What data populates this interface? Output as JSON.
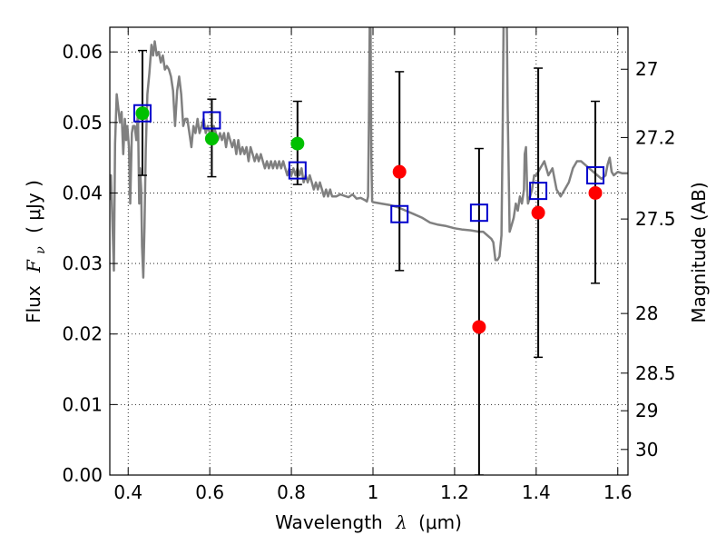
{
  "chart_data": {
    "type": "scatter",
    "xlabel_text": "Wavelength",
    "xlabel_symbol": "λ",
    "xlabel_unit": "(μm)",
    "ylabel_text": "Flux",
    "ylabel_symbol": "F",
    "ylabel_subscript": "ν",
    "ylabel_unit": "( μJy )",
    "y2label": "Magnitude (AB)",
    "xlim": [
      0.355,
      1.625
    ],
    "ylim": [
      0.0,
      0.0635
    ],
    "x_ticks": [
      0.4,
      0.6,
      0.8,
      1.0,
      1.2,
      1.4,
      1.6
    ],
    "x_tick_labels": [
      "0.4",
      "0.6",
      "0.8",
      "1",
      "1.2",
      "1.4",
      "1.6"
    ],
    "y_ticks": [
      0.0,
      0.01,
      0.02,
      0.03,
      0.04,
      0.05,
      0.06
    ],
    "y_tick_labels": [
      "0.00",
      "0.01",
      "0.02",
      "0.03",
      "0.04",
      "0.05",
      "0.06"
    ],
    "mag_ticks": [
      27,
      27.2,
      27.5,
      28,
      28.5,
      29,
      30
    ],
    "mag_tick_labels": [
      "27",
      "27.2",
      "27.5",
      "28",
      "28.5",
      "29",
      "30"
    ],
    "grid": true,
    "colors": {
      "model": "#808080",
      "green_points": "#00c000",
      "red_points": "#ff0000",
      "boxes": "#0000cc",
      "errorbars": "#000000"
    },
    "series": [
      {
        "values_role": "model spectrum",
        "points": [
          [
            0.355,
            0.039
          ],
          [
            0.358,
            0.0425
          ],
          [
            0.362,
            0.035
          ],
          [
            0.365,
            0.029
          ],
          [
            0.368,
            0.047
          ],
          [
            0.372,
            0.054
          ],
          [
            0.376,
            0.052
          ],
          [
            0.38,
            0.05
          ],
          [
            0.384,
            0.0515
          ],
          [
            0.388,
            0.0455
          ],
          [
            0.392,
            0.0505
          ],
          [
            0.395,
            0.0475
          ],
          [
            0.398,
            0.0495
          ],
          [
            0.402,
            0.0465
          ],
          [
            0.405,
            0.0385
          ],
          [
            0.409,
            0.0485
          ],
          [
            0.412,
            0.0495
          ],
          [
            0.416,
            0.0495
          ],
          [
            0.42,
            0.0475
          ],
          [
            0.424,
            0.0515
          ],
          [
            0.427,
            0.0385
          ],
          [
            0.429,
            0.0435
          ],
          [
            0.432,
            0.0405
          ],
          [
            0.434,
            0.0325
          ],
          [
            0.437,
            0.028
          ],
          [
            0.44,
            0.035
          ],
          [
            0.443,
            0.046
          ],
          [
            0.447,
            0.054
          ],
          [
            0.452,
            0.057
          ],
          [
            0.457,
            0.061
          ],
          [
            0.461,
            0.0595
          ],
          [
            0.465,
            0.0615
          ],
          [
            0.47,
            0.0595
          ],
          [
            0.475,
            0.06
          ],
          [
            0.48,
            0.0585
          ],
          [
            0.485,
            0.0595
          ],
          [
            0.49,
            0.0575
          ],
          [
            0.495,
            0.058
          ],
          [
            0.5,
            0.0575
          ],
          [
            0.505,
            0.0565
          ],
          [
            0.51,
            0.0545
          ],
          [
            0.515,
            0.0495
          ],
          [
            0.52,
            0.0545
          ],
          [
            0.525,
            0.0565
          ],
          [
            0.53,
            0.054
          ],
          [
            0.535,
            0.0495
          ],
          [
            0.54,
            0.0505
          ],
          [
            0.545,
            0.0505
          ],
          [
            0.55,
            0.0485
          ],
          [
            0.555,
            0.0465
          ],
          [
            0.56,
            0.0495
          ],
          [
            0.565,
            0.0485
          ],
          [
            0.57,
            0.0505
          ],
          [
            0.575,
            0.0485
          ],
          [
            0.58,
            0.0495
          ],
          [
            0.585,
            0.0505
          ],
          [
            0.59,
            0.0485
          ],
          [
            0.595,
            0.0495
          ],
          [
            0.6,
            0.0485
          ],
          [
            0.605,
            0.0475
          ],
          [
            0.61,
            0.0495
          ],
          [
            0.615,
            0.0485
          ],
          [
            0.62,
            0.0475
          ],
          [
            0.625,
            0.0485
          ],
          [
            0.63,
            0.0475
          ],
          [
            0.635,
            0.0485
          ],
          [
            0.64,
            0.0465
          ],
          [
            0.645,
            0.0485
          ],
          [
            0.65,
            0.0475
          ],
          [
            0.655,
            0.0465
          ],
          [
            0.66,
            0.0475
          ],
          [
            0.665,
            0.0455
          ],
          [
            0.67,
            0.0475
          ],
          [
            0.675,
            0.0455
          ],
          [
            0.68,
            0.0465
          ],
          [
            0.685,
            0.0455
          ],
          [
            0.69,
            0.0465
          ],
          [
            0.695,
            0.0445
          ],
          [
            0.7,
            0.0465
          ],
          [
            0.705,
            0.0455
          ],
          [
            0.71,
            0.0445
          ],
          [
            0.715,
            0.0455
          ],
          [
            0.72,
            0.0445
          ],
          [
            0.725,
            0.0455
          ],
          [
            0.73,
            0.0445
          ],
          [
            0.735,
            0.0435
          ],
          [
            0.74,
            0.0445
          ],
          [
            0.745,
            0.0435
          ],
          [
            0.75,
            0.0445
          ],
          [
            0.755,
            0.0435
          ],
          [
            0.76,
            0.0445
          ],
          [
            0.765,
            0.0435
          ],
          [
            0.77,
            0.0445
          ],
          [
            0.775,
            0.0435
          ],
          [
            0.78,
            0.0445
          ],
          [
            0.785,
            0.0435
          ],
          [
            0.79,
            0.0425
          ],
          [
            0.795,
            0.0435
          ],
          [
            0.8,
            0.0425
          ],
          [
            0.805,
            0.0435
          ],
          [
            0.81,
            0.0425
          ],
          [
            0.815,
            0.0435
          ],
          [
            0.82,
            0.0425
          ],
          [
            0.825,
            0.0435
          ],
          [
            0.83,
            0.0415
          ],
          [
            0.835,
            0.0425
          ],
          [
            0.84,
            0.0415
          ],
          [
            0.845,
            0.0425
          ],
          [
            0.85,
            0.0415
          ],
          [
            0.855,
            0.0405
          ],
          [
            0.86,
            0.0415
          ],
          [
            0.865,
            0.0405
          ],
          [
            0.87,
            0.0415
          ],
          [
            0.875,
            0.0405
          ],
          [
            0.88,
            0.0395
          ],
          [
            0.885,
            0.0405
          ],
          [
            0.89,
            0.0395
          ],
          [
            0.895,
            0.0405
          ],
          [
            0.9,
            0.0395
          ],
          [
            0.91,
            0.0395
          ],
          [
            0.92,
            0.0398
          ],
          [
            0.93,
            0.0396
          ],
          [
            0.94,
            0.0394
          ],
          [
            0.95,
            0.0398
          ],
          [
            0.96,
            0.0392
          ],
          [
            0.97,
            0.0393
          ],
          [
            0.98,
            0.039
          ],
          [
            0.985,
            0.0388
          ],
          [
            0.988,
            0.0395
          ],
          [
            0.99,
            0.05
          ],
          [
            0.992,
            0.064
          ],
          [
            0.994,
            0.064
          ],
          [
            0.996,
            0.045
          ],
          [
            0.998,
            0.0388
          ],
          [
            1.0,
            0.0387
          ],
          [
            1.02,
            0.0385
          ],
          [
            1.04,
            0.0383
          ],
          [
            1.06,
            0.038
          ],
          [
            1.08,
            0.0375
          ],
          [
            1.1,
            0.037
          ],
          [
            1.12,
            0.0365
          ],
          [
            1.14,
            0.0358
          ],
          [
            1.16,
            0.0355
          ],
          [
            1.18,
            0.0353
          ],
          [
            1.2,
            0.035
          ],
          [
            1.22,
            0.0348
          ],
          [
            1.24,
            0.0347
          ],
          [
            1.26,
            0.0345
          ],
          [
            1.27,
            0.0345
          ],
          [
            1.28,
            0.034
          ],
          [
            1.29,
            0.0335
          ],
          [
            1.295,
            0.033
          ],
          [
            1.3,
            0.0305
          ],
          [
            1.305,
            0.0305
          ],
          [
            1.31,
            0.031
          ],
          [
            1.315,
            0.034
          ],
          [
            1.318,
            0.05
          ],
          [
            1.32,
            0.064
          ],
          [
            1.328,
            0.064
          ],
          [
            1.33,
            0.052
          ],
          [
            1.335,
            0.0345
          ],
          [
            1.34,
            0.0355
          ],
          [
            1.345,
            0.0365
          ],
          [
            1.35,
            0.0385
          ],
          [
            1.355,
            0.0375
          ],
          [
            1.36,
            0.0395
          ],
          [
            1.365,
            0.0385
          ],
          [
            1.37,
            0.0405
          ],
          [
            1.372,
            0.0455
          ],
          [
            1.375,
            0.0465
          ],
          [
            1.378,
            0.0405
          ],
          [
            1.38,
            0.0385
          ],
          [
            1.385,
            0.0395
          ],
          [
            1.39,
            0.0405
          ],
          [
            1.395,
            0.0425
          ],
          [
            1.4,
            0.0425
          ],
          [
            1.41,
            0.0435
          ],
          [
            1.42,
            0.0445
          ],
          [
            1.43,
            0.0425
          ],
          [
            1.44,
            0.0435
          ],
          [
            1.45,
            0.0405
          ],
          [
            1.46,
            0.0395
          ],
          [
            1.47,
            0.0405
          ],
          [
            1.48,
            0.0415
          ],
          [
            1.49,
            0.0435
          ],
          [
            1.5,
            0.0445
          ],
          [
            1.51,
            0.0445
          ],
          [
            1.52,
            0.044
          ],
          [
            1.53,
            0.0435
          ],
          [
            1.54,
            0.043
          ],
          [
            1.55,
            0.0425
          ],
          [
            1.56,
            0.042
          ],
          [
            1.57,
            0.0425
          ],
          [
            1.575,
            0.044
          ],
          [
            1.58,
            0.045
          ],
          [
            1.585,
            0.043
          ],
          [
            1.59,
            0.0425
          ],
          [
            1.6,
            0.043
          ],
          [
            1.61,
            0.0428
          ],
          [
            1.625,
            0.0428
          ]
        ]
      },
      {
        "values_role": "observed points (green)",
        "x": [
          0.435,
          0.605,
          0.815
        ],
        "y": [
          0.0513,
          0.0477,
          0.047
        ]
      },
      {
        "values_role": "observed points (red)",
        "x": [
          1.065,
          1.26,
          1.405,
          1.545
        ],
        "y": [
          0.043,
          0.021,
          0.0372,
          0.04
        ]
      },
      {
        "values_role": "model photometry (boxes)",
        "x": [
          0.435,
          0.605,
          0.815,
          1.065,
          1.26,
          1.405,
          1.545
        ],
        "y": [
          0.0513,
          0.0503,
          0.0432,
          0.037,
          0.0372,
          0.0403,
          0.0425
        ]
      },
      {
        "values_role": "error bars",
        "x": [
          0.435,
          0.605,
          0.815,
          1.065,
          1.26,
          1.405,
          1.545
        ],
        "low": [
          0.0425,
          0.0423,
          0.0412,
          0.029,
          0.0,
          0.0167,
          0.0272
        ],
        "high": [
          0.0602,
          0.0533,
          0.053,
          0.0572,
          0.0463,
          0.0577,
          0.053
        ]
      }
    ]
  }
}
